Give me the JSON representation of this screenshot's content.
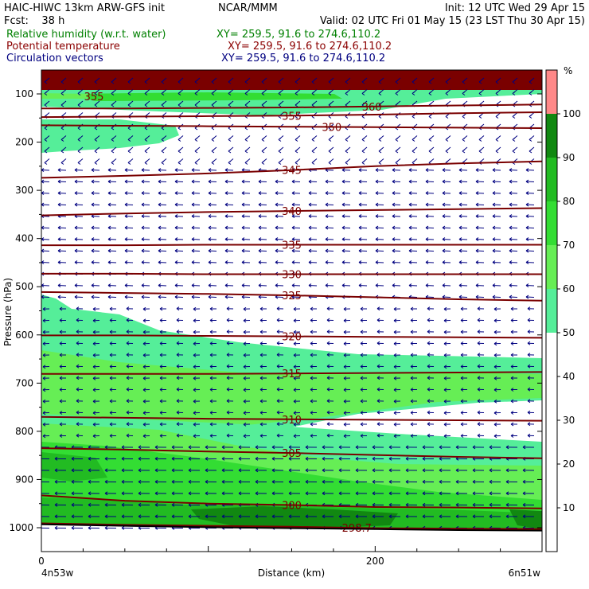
{
  "header": {
    "line1_left": "HAIC-HIWC 13km ARW-GFS init",
    "line1_center": "NCAR/MMM",
    "line1_right": "Init: 12 UTC Wed 29 Apr 15",
    "line2_left": "Fcst:    38 h",
    "line2_right": "Valid: 02 UTC Fri 01 May 15 (23 LST Thu 30 Apr 15)",
    "rh_label": "Relative humidity (w.r.t. water)",
    "rh_xy": "XY= 259.5, 91.6 to 274.6,110.2",
    "theta_label": "Potential temperature",
    "theta_xy": "XY= 259.5, 91.6 to 274.6,110.2",
    "vec_label": "Circulation vectors",
    "vec_xy": "XY= 259.5, 91.6 to 274.6,110.2",
    "rh_color": "#008000",
    "theta_color": "#8b0000",
    "vec_color": "#000080"
  },
  "chart_data": {
    "type": "heatmap",
    "xlabel": "Distance (km)",
    "ylabel": "Pressure (hPa)",
    "x_ticks": [
      "0",
      "200"
    ],
    "x_tick_values": [
      0,
      200
    ],
    "xlim": [
      0,
      300
    ],
    "left_endpoint": "4n53w",
    "right_endpoint": "6n51w",
    "y_ticks": [
      "100",
      "200",
      "300",
      "400",
      "500",
      "600",
      "700",
      "800",
      "900",
      "1000"
    ],
    "y_tick_values": [
      100,
      200,
      300,
      400,
      500,
      600,
      700,
      800,
      900,
      1000
    ],
    "ylim": [
      50,
      1050
    ],
    "colorbar": {
      "unit": "%",
      "labels": [
        "10",
        "20",
        "30",
        "40",
        "50",
        "60",
        "70",
        "80",
        "90",
        "100"
      ],
      "levels": [
        0,
        50,
        60,
        70,
        80,
        90,
        100,
        110
      ],
      "colors": [
        "#ffffff",
        "#55ee99",
        "#66ee55",
        "#33dd33",
        "#22bb22",
        "#118811",
        "#ff8888"
      ]
    },
    "theta_contours": [
      {
        "label": "360",
        "x": [
          0,
          50,
          100,
          150,
          200,
          250,
          300
        ],
        "p": [
          130,
          130,
          129,
          128,
          126,
          124,
          122
        ]
      },
      {
        "label": "355",
        "x": [
          0,
          50,
          100,
          150,
          200,
          250,
          300
        ],
        "p": [
          148,
          147,
          146,
          145,
          143,
          140,
          138
        ]
      },
      {
        "label": "350",
        "x": [
          0,
          50,
          100,
          150,
          200,
          250,
          300
        ],
        "p": [
          165,
          166,
          167,
          168,
          169,
          170,
          171
        ]
      },
      {
        "label": "345",
        "x": [
          0,
          50,
          100,
          150,
          200,
          250,
          300
        ],
        "p": [
          274,
          270,
          265,
          258,
          250,
          244,
          240
        ]
      },
      {
        "label": "340",
        "x": [
          0,
          50,
          100,
          150,
          200,
          250,
          300
        ],
        "p": [
          352,
          348,
          345,
          343,
          341,
          339,
          337
        ]
      },
      {
        "label": "335",
        "x": [
          0,
          50,
          100,
          150,
          200,
          250,
          300
        ],
        "p": [
          414,
          414,
          413,
          413,
          413,
          413,
          413
        ]
      },
      {
        "label": "330",
        "x": [
          0,
          50,
          100,
          150,
          200,
          250,
          300
        ],
        "p": [
          473,
          473,
          474,
          474,
          474,
          474,
          474
        ]
      },
      {
        "label": "325",
        "x": [
          0,
          50,
          100,
          150,
          200,
          250,
          300
        ],
        "p": [
          511,
          513,
          515,
          518,
          522,
          526,
          529
        ]
      },
      {
        "label": "320",
        "x": [
          0,
          50,
          100,
          150,
          200,
          250,
          300
        ],
        "p": [
          601,
          601,
          602,
          603,
          604,
          605,
          606
        ]
      },
      {
        "label": "315",
        "x": [
          0,
          50,
          100,
          150,
          200,
          250,
          300
        ],
        "p": [
          681,
          681,
          681,
          680,
          679,
          678,
          677
        ]
      },
      {
        "label": "310",
        "x": [
          0,
          50,
          100,
          150,
          200,
          250,
          300
        ],
        "p": [
          770,
          772,
          774,
          775,
          776,
          777,
          778
        ]
      },
      {
        "label": "305",
        "x": [
          0,
          50,
          100,
          150,
          200,
          250,
          300
        ],
        "p": [
          835,
          838,
          842,
          845,
          849,
          853,
          856
        ]
      },
      {
        "label": "300",
        "x": [
          0,
          50,
          100,
          150,
          200,
          250,
          300
        ],
        "p": [
          933,
          944,
          950,
          953,
          957,
          958,
          960
        ]
      },
      {
        "label": "298.7",
        "x": [
          0,
          50,
          100,
          150,
          200,
          250,
          300
        ],
        "p": [
          991,
          994,
          996,
          998,
          1001,
          1002,
          1003
        ]
      }
    ],
    "terrain_line": {
      "x": [
        0,
        50,
        100,
        150,
        200,
        250,
        300
      ],
      "p": [
        993,
        996,
        999,
        1001,
        1003,
        1005,
        1006
      ]
    }
  }
}
